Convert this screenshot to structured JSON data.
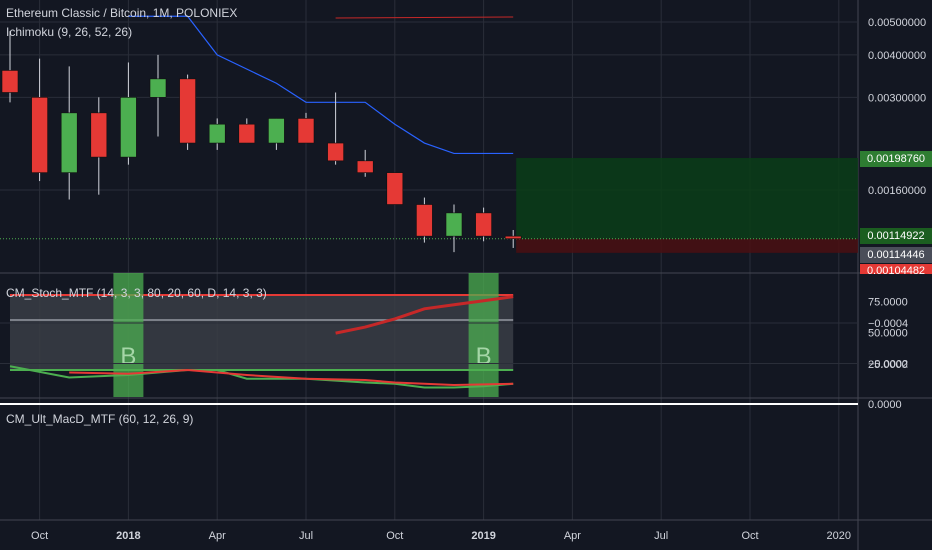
{
  "header": {
    "symbol_line": "Ethereum Classic / Bitcoin, 1M, POLONIEX",
    "indicator": "Ichimoku (9, 26, 52, 26)"
  },
  "panes": {
    "stoch_title": "CM_Stoch_MTF (14, 3, 3, 80, 20, 60, D, 14, 3, 3)",
    "macd_title": "CM_Ult_MacD_MTF (60, 12, 26, 9)"
  },
  "badges": {
    "target": "0.00198760",
    "last": "0.00114922",
    "prev": "0.00114446",
    "stop": "0.00104482"
  },
  "colors": {
    "background": "#131722",
    "up": "#4caf50",
    "down": "#e53935",
    "ichimoku_line": "#2962ff",
    "target_zone": "#0b3d17",
    "stop_zone": "#4a0f12",
    "grid": "#2a2e39",
    "stoch_band": "#3a3d45"
  },
  "chart_data": [
    {
      "type": "candlestick",
      "pane": "price",
      "scale": "log",
      "y_ticks": [
        0.005,
        0.004,
        0.003,
        0.0016
      ],
      "y_tick_labels": [
        "0.00500000",
        "0.00400000",
        "0.00300000",
        "0.00160000"
      ],
      "x_tick_labels": [
        "Oct",
        "2018",
        "Apr",
        "Jul",
        "Oct",
        "2019",
        "Apr",
        "Jul",
        "Oct",
        "2020"
      ],
      "candles": [
        {
          "t": "2017-09",
          "o": 0.0036,
          "h": 0.0047,
          "l": 0.0029,
          "c": 0.0031
        },
        {
          "t": "2017-10",
          "o": 0.003,
          "h": 0.0039,
          "l": 0.0017,
          "c": 0.0018
        },
        {
          "t": "2017-11",
          "o": 0.0018,
          "h": 0.0037,
          "l": 0.0015,
          "c": 0.0027
        },
        {
          "t": "2017-12",
          "o": 0.0027,
          "h": 0.003,
          "l": 0.00155,
          "c": 0.002
        },
        {
          "t": "2018-01",
          "o": 0.002,
          "h": 0.0038,
          "l": 0.0019,
          "c": 0.003
        },
        {
          "t": "2018-02",
          "o": 0.003,
          "h": 0.004,
          "l": 0.0023,
          "c": 0.0034
        },
        {
          "t": "2018-03",
          "o": 0.0034,
          "h": 0.0035,
          "l": 0.0021,
          "c": 0.0022
        },
        {
          "t": "2018-04",
          "o": 0.0022,
          "h": 0.0026,
          "l": 0.0021,
          "c": 0.0025
        },
        {
          "t": "2018-05",
          "o": 0.0025,
          "h": 0.0026,
          "l": 0.0022,
          "c": 0.0022
        },
        {
          "t": "2018-06",
          "o": 0.0022,
          "h": 0.0026,
          "l": 0.0021,
          "c": 0.0026
        },
        {
          "t": "2018-07",
          "o": 0.0026,
          "h": 0.0027,
          "l": 0.0022,
          "c": 0.0022
        },
        {
          "t": "2018-08",
          "o": 0.0022,
          "h": 0.0031,
          "l": 0.0019,
          "c": 0.00195
        },
        {
          "t": "2018-09",
          "o": 0.00195,
          "h": 0.0021,
          "l": 0.00175,
          "c": 0.0018
        },
        {
          "t": "2018-10",
          "o": 0.0018,
          "h": 0.0018,
          "l": 0.00145,
          "c": 0.00145
        },
        {
          "t": "2018-11",
          "o": 0.00145,
          "h": 0.00152,
          "l": 0.00112,
          "c": 0.00117
        },
        {
          "t": "2018-12",
          "o": 0.00117,
          "h": 0.00145,
          "l": 0.00105,
          "c": 0.00137
        },
        {
          "t": "2019-01",
          "o": 0.00137,
          "h": 0.00142,
          "l": 0.00113,
          "c": 0.00117
        },
        {
          "t": "2019-02",
          "o": 0.00117,
          "h": 0.00122,
          "l": 0.00108,
          "c": 0.00115
        }
      ],
      "ichimoku_line": [
        {
          "t": "2018-01",
          "v": 0.0052
        },
        {
          "t": "2018-03",
          "v": 0.0052
        },
        {
          "t": "2018-04",
          "v": 0.004
        },
        {
          "t": "2018-06",
          "v": 0.0033
        },
        {
          "t": "2018-07",
          "v": 0.0029
        },
        {
          "t": "2018-09",
          "v": 0.0029
        },
        {
          "t": "2018-10",
          "v": 0.0025
        },
        {
          "t": "2018-11",
          "v": 0.0022
        },
        {
          "t": "2018-12",
          "v": 0.00205
        },
        {
          "t": "2019-02",
          "v": 0.00205
        }
      ],
      "long_position": {
        "start": "2019-02",
        "target": 0.0019876,
        "entry": 0.00114922,
        "stop": 0.00104482
      },
      "top_line": {
        "start": "2018-08",
        "end": "2019-02",
        "v": 0.0053
      }
    },
    {
      "type": "line",
      "pane": "stochastic",
      "ylim": [
        0,
        100
      ],
      "y_ticks": [
        75,
        50,
        25
      ],
      "y_tick_labels": [
        "75.0000",
        "50.0000",
        "25.0000"
      ],
      "levels": {
        "upper": 80,
        "mid": 60,
        "lower": 20
      },
      "buy_signals": [
        {
          "t": "2018-01",
          "label": "B"
        },
        {
          "t": "2019-01",
          "label": "B"
        }
      ],
      "series": [
        {
          "color": "#4caf50",
          "points": [
            [
              "2017-09",
              23
            ],
            [
              "2017-11",
              14
            ],
            [
              "2018-01",
              16
            ],
            [
              "2018-03",
              20
            ],
            [
              "2018-04",
              20
            ],
            [
              "2018-05",
              13
            ],
            [
              "2018-07",
              13
            ],
            [
              "2018-09",
              10
            ],
            [
              "2018-10",
              9
            ],
            [
              "2018-11",
              6
            ],
            [
              "2018-12",
              6
            ],
            [
              "2019-01",
              7
            ],
            [
              "2019-02",
              9
            ]
          ]
        },
        {
          "color": "#e53935",
          "points": [
            [
              "2017-11",
              18
            ],
            [
              "2018-01",
              17
            ],
            [
              "2018-03",
              20
            ],
            [
              "2018-05",
              16
            ],
            [
              "2018-07",
              13
            ],
            [
              "2018-09",
              12
            ],
            [
              "2018-10",
              10
            ],
            [
              "2018-12",
              8
            ],
            [
              "2019-02",
              9
            ]
          ]
        }
      ]
    },
    {
      "type": "line",
      "pane": "macd",
      "ylim": [
        -0.00055,
        2e-05
      ],
      "y_ticks": [
        0.0,
        -0.0002,
        -0.0004
      ],
      "y_tick_labels": [
        "0.0000",
        "−0.0002",
        "−0.0004"
      ],
      "series": [
        {
          "color": "#c62828",
          "points": [
            [
              "2018-08",
              -0.00035
            ],
            [
              "2018-09",
              -0.00038
            ],
            [
              "2018-10",
              -0.00042
            ],
            [
              "2018-11",
              -0.00047
            ],
            [
              "2018-12",
              -0.00049
            ],
            [
              "2019-01",
              -0.00051
            ],
            [
              "2019-02",
              -0.00053
            ]
          ]
        }
      ],
      "zero_line": 0
    }
  ]
}
